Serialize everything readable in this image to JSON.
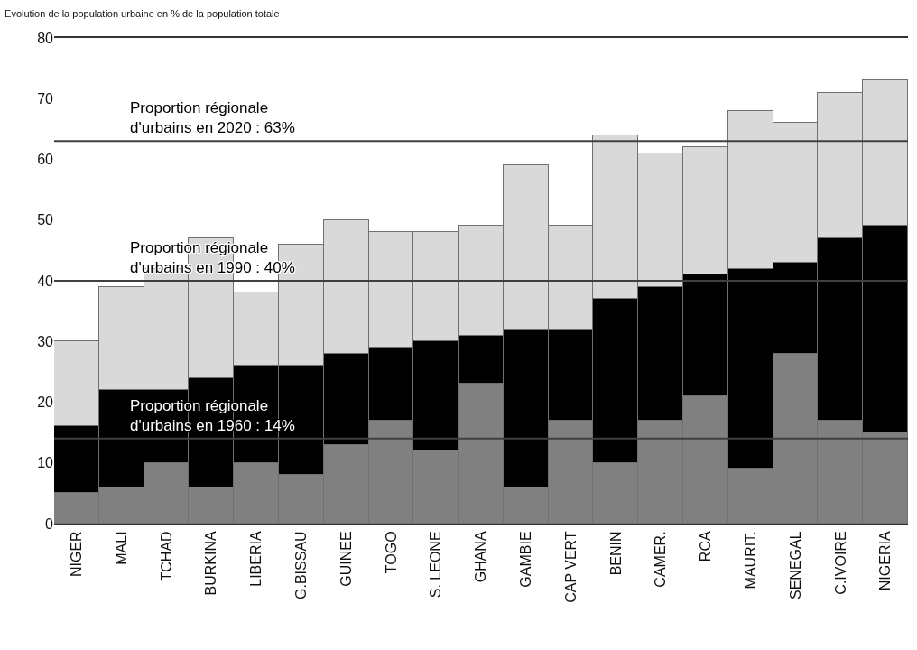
{
  "chart_data": {
    "type": "bar",
    "title": "Evolution de la population urbaine en % de la population totale",
    "stacked": true,
    "categories": [
      "NIGER",
      "MALI",
      "TCHAD",
      "BURKINA",
      "LIBERIA",
      "G.BISSAU",
      "GUINEE",
      "TOGO",
      "S. LEONE",
      "GHANA",
      "GAMBIE",
      "CAP VERT",
      "BENIN",
      "CAMER.",
      "RCA",
      "MAURIT.",
      "SENEGAL",
      "C.IVOIRE",
      "NIGERIA"
    ],
    "series": [
      {
        "color": "#808080",
        "values": [
          5,
          6,
          10,
          6,
          10,
          8,
          13,
          17,
          12,
          23,
          6,
          17,
          10,
          17,
          21,
          9,
          28,
          17,
          15
        ]
      },
      {
        "color": "#000000",
        "values": [
          11,
          16,
          12,
          18,
          16,
          18,
          15,
          12,
          18,
          8,
          26,
          15,
          27,
          22,
          20,
          33,
          15,
          30,
          34
        ]
      },
      {
        "color": "#d9d9d9",
        "values": [
          14,
          17,
          20,
          23,
          12,
          20,
          22,
          19,
          18,
          18,
          27,
          17,
          27,
          22,
          21,
          26,
          23,
          24,
          24
        ]
      }
    ],
    "ylim": [
      0,
      80
    ],
    "yticks": [
      0,
      10,
      20,
      30,
      40,
      50,
      60,
      70,
      80
    ],
    "ref_lines": [
      {
        "axis": "y",
        "value": 63,
        "label": "Proportion régionale\nd'urbains en 2020 : 63%",
        "color": "#404040"
      },
      {
        "axis": "y",
        "value": 40,
        "label": "Proportion régionale\nd'urbains en 1990 : 40%",
        "color": "#404040"
      },
      {
        "axis": "y",
        "value": 14,
        "label": "Proportion régionale\nd'urbains en 1960 : 14%",
        "color": "#404040"
      }
    ]
  }
}
